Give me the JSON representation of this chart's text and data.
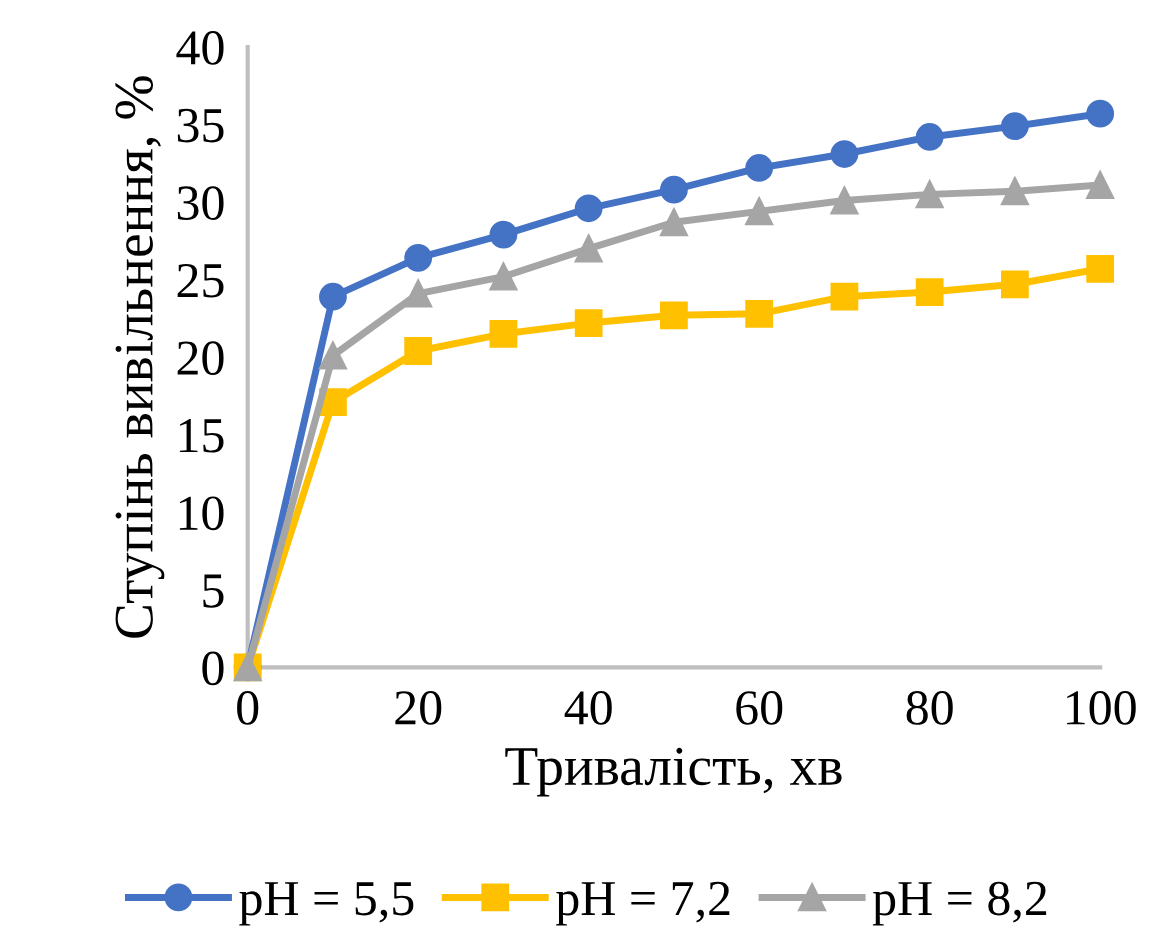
{
  "chart_data": {
    "type": "line",
    "xlabel": "Тривалість, хв",
    "ylabel": "Ступінь вивільнення, %",
    "x": [
      0,
      10,
      20,
      30,
      40,
      50,
      60,
      70,
      80,
      90,
      100
    ],
    "series": [
      {
        "name": "pH = 5,5",
        "color": "#4472c4",
        "marker": "circle",
        "values": [
          0,
          23.9,
          26.4,
          27.9,
          29.6,
          30.8,
          32.2,
          33.1,
          34.2,
          34.9,
          35.7
        ]
      },
      {
        "name": "pH = 7,2",
        "color": "#ffc000",
        "marker": "square",
        "values": [
          0,
          17.1,
          20.4,
          21.5,
          22.2,
          22.7,
          22.8,
          23.9,
          24.2,
          24.7,
          25.7
        ]
      },
      {
        "name": "pH = 8,2",
        "color": "#a5a5a5",
        "marker": "triangle",
        "values": [
          0,
          20.1,
          24.1,
          25.2,
          27.0,
          28.7,
          29.4,
          30.1,
          30.5,
          30.7,
          31.1
        ]
      }
    ],
    "xlim": [
      0,
      100
    ],
    "ylim": [
      0,
      40
    ],
    "xticks": [
      0,
      20,
      40,
      60,
      80,
      100
    ],
    "yticks": [
      0,
      5,
      10,
      15,
      20,
      25,
      30,
      35,
      40
    ],
    "grid": false,
    "legend": "bottom",
    "line_style": "solid"
  }
}
